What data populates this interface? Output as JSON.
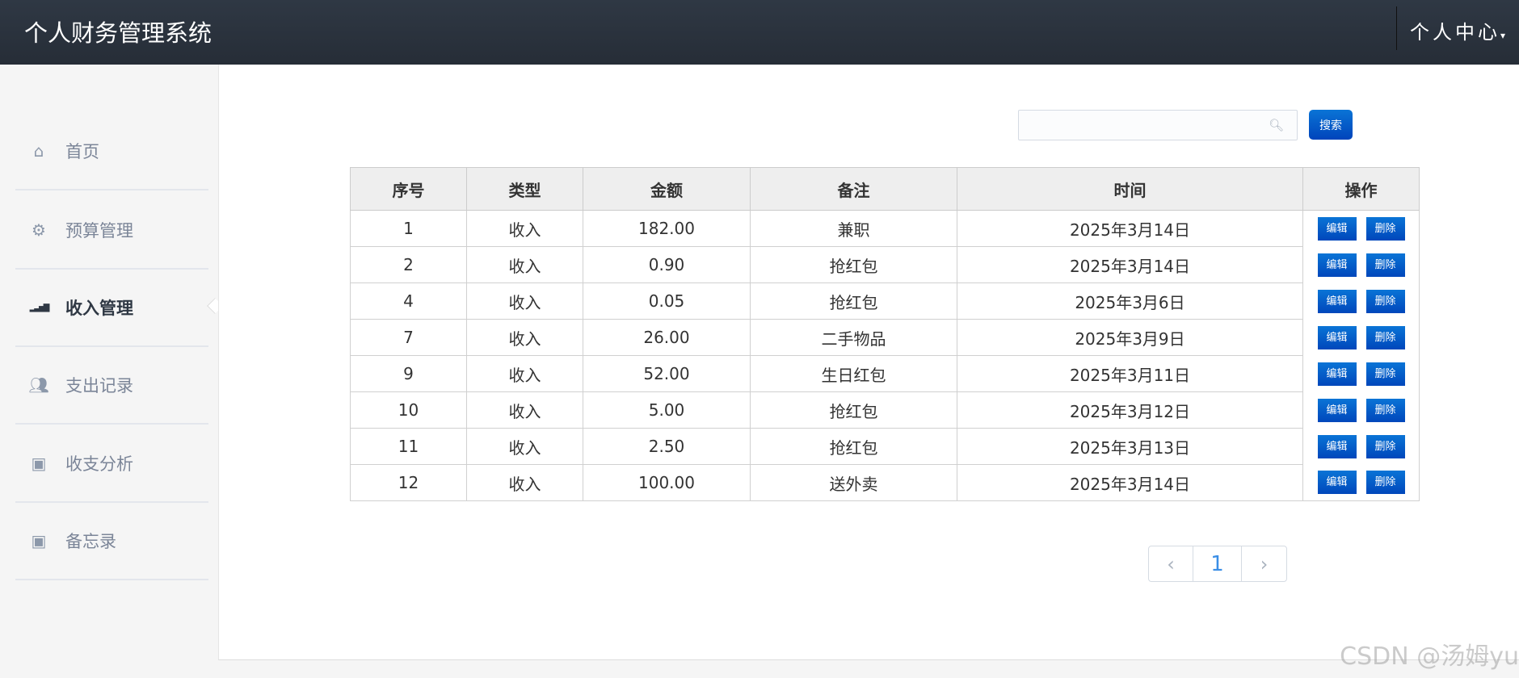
{
  "header": {
    "title": "个人财务管理系统",
    "user_menu": "个人中心"
  },
  "sidebar": {
    "items": [
      {
        "label": "首页",
        "icon": "home-icon"
      },
      {
        "label": "预算管理",
        "icon": "gear-icon"
      },
      {
        "label": "收入管理",
        "icon": "signal-icon",
        "active": true
      },
      {
        "label": "支出记录",
        "icon": "users-icon"
      },
      {
        "label": "收支分析",
        "icon": "image-icon"
      },
      {
        "label": "备忘录",
        "icon": "image-icon"
      }
    ]
  },
  "search": {
    "value": "",
    "placeholder": "",
    "button": "搜索"
  },
  "table": {
    "headers": [
      "序号",
      "类型",
      "金额",
      "备注",
      "时间",
      "操作"
    ],
    "rows": [
      [
        "1",
        "收入",
        "182.00",
        "兼职",
        "2025年3月14日"
      ],
      [
        "2",
        "收入",
        "0.90",
        "抢红包",
        "2025年3月14日"
      ],
      [
        "4",
        "收入",
        "0.05",
        "抢红包",
        "2025年3月6日"
      ],
      [
        "7",
        "收入",
        "26.00",
        "二手物品",
        "2025年3月9日"
      ],
      [
        "9",
        "收入",
        "52.00",
        "生日红包",
        "2025年3月11日"
      ],
      [
        "10",
        "收入",
        "5.00",
        "抢红包",
        "2025年3月12日"
      ],
      [
        "11",
        "收入",
        "2.50",
        "抢红包",
        "2025年3月13日"
      ],
      [
        "12",
        "收入",
        "100.00",
        "送外卖",
        "2025年3月14日"
      ]
    ],
    "edit_label": "编辑",
    "delete_label": "删除"
  },
  "pager": {
    "prev": "‹",
    "current": "1",
    "next": "›"
  },
  "watermark": "CSDN @汤姆yu",
  "colors": {
    "header": "#2b323d",
    "accent": "#0a5fcc"
  }
}
